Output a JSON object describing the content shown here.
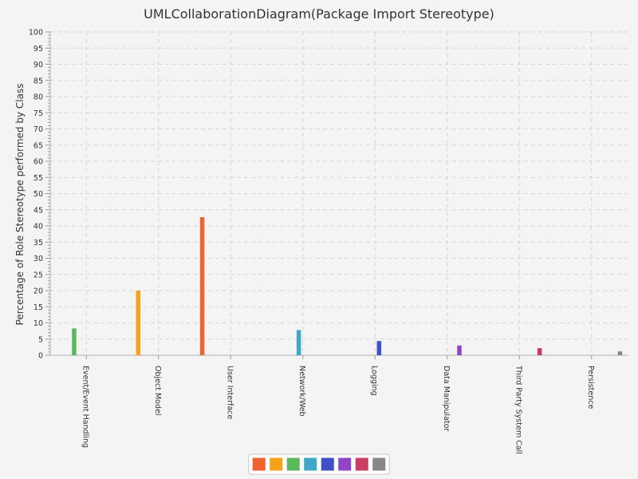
{
  "chart_data": {
    "type": "bar",
    "title": "UMLCollaborationDiagram(Package Import Stereotype)",
    "xlabel": "",
    "ylabel": "Percentage of Role Stereotype performed by Class",
    "ylim": [
      0,
      100
    ],
    "y_major_step": 5,
    "y_minor_step": 1,
    "grid": true,
    "legend_position": "bottom",
    "categories": [
      "Event/Event Handling",
      "Object Model",
      "User Interface",
      "Network/Web",
      "Logging",
      "Data Manipulator",
      "Third Party System Call",
      "Persistence"
    ],
    "series": [
      {
        "color": "#f16232",
        "values": [
          0,
          0,
          42.7,
          0,
          0,
          0,
          0,
          0
        ]
      },
      {
        "color": "#f3a21b",
        "values": [
          0,
          20.0,
          0,
          0,
          0,
          0,
          0,
          0
        ]
      },
      {
        "color": "#5cb85c",
        "values": [
          8.3,
          0,
          0,
          0,
          0,
          0,
          0,
          0
        ]
      },
      {
        "color": "#3fa7c8",
        "values": [
          0,
          0,
          0,
          7.8,
          0,
          0,
          0,
          0
        ]
      },
      {
        "color": "#3f51c5",
        "values": [
          0,
          0,
          0,
          0,
          4.4,
          0,
          0,
          0
        ]
      },
      {
        "color": "#9045c9",
        "values": [
          0,
          0,
          0,
          0,
          0,
          3.0,
          0,
          0
        ]
      },
      {
        "color": "#c93f62",
        "values": [
          0,
          0,
          0,
          0,
          0,
          0,
          2.2,
          0
        ]
      },
      {
        "color": "#878787",
        "values": [
          0,
          0,
          0,
          0,
          0,
          0,
          0,
          1.2
        ]
      }
    ]
  }
}
